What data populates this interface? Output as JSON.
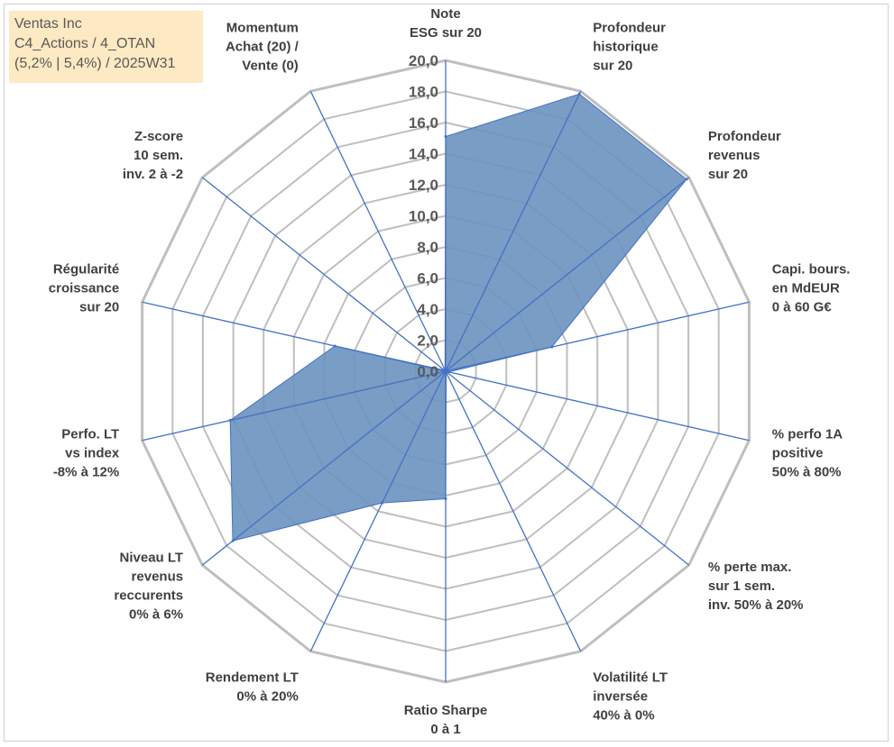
{
  "info_box": {
    "line1": "Ventas Inc",
    "line2": "C4_Actions / 4_OTAN",
    "line3": "(5,2% | 5,4%) / 2025W31"
  },
  "chart_data": {
    "type": "radar",
    "title": "",
    "rmin": 0,
    "rmax": 20,
    "grid": true,
    "ticks": [
      "0,0",
      "2,0",
      "4,0",
      "6,0",
      "8,0",
      "10,0",
      "12,0",
      "14,0",
      "16,0",
      "18,0",
      "20,0"
    ],
    "tick_values": [
      0,
      2,
      4,
      6,
      8,
      10,
      12,
      14,
      16,
      18,
      20
    ],
    "axes": [
      "Note\nESG sur 20",
      "Profondeur\nhistorique\nsur 20",
      "Profondeur\nrevenus\nsur 20",
      "Capi. bours.\nen MdEUR\n0 à 60 G€",
      "% perfo 1A\npositive\n50% à 80%",
      "% perte max.\nsur 1 sem.\ninv. 50% à 20%",
      "Volatilité LT\ninversée\n40% à 0%",
      "Ratio Sharpe\n0 à 1",
      "Rendement LT\n0% à 20%",
      "Niveau LT\nrevenus\nreccurents\n0% à 6%",
      "Perfo. LT\nvs index\n-8% à 12%",
      "Régularité\ncroissance\nsur 20",
      "Z-score\n10 sem.\ninv. 2 à -2",
      "Momentum\nAchat (20) /\nVente (0)"
    ],
    "series": [
      {
        "values": [
          15.1,
          19.8,
          19.8,
          7.0,
          0.2,
          0.1,
          0.1,
          8.2,
          9.4,
          17.5,
          14.2,
          7.3,
          0.1,
          0.1
        ],
        "fill": "#6a92be",
        "stroke": "#4472c4"
      }
    ],
    "colors": {
      "grid": "#bfbfbf",
      "spoke": "#4472c4"
    }
  }
}
